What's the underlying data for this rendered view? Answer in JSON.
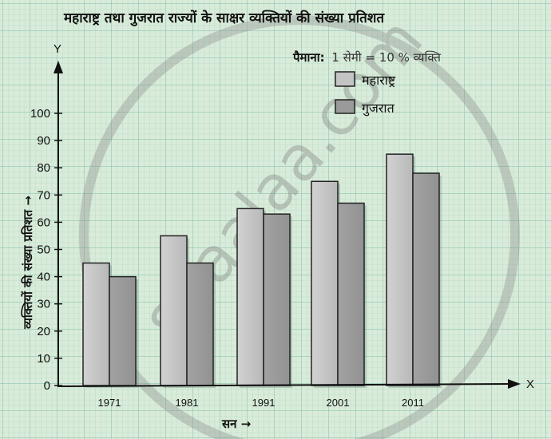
{
  "chart_data": {
    "type": "bar",
    "title": "महाराष्ट्र तथा गुजरात राज्यों के साक्षर व्यक्तियों की संख्या प्रतिशत",
    "scale_label": "पैमाना:",
    "scale_text": "1 सेमी = 10 % व्यक्ति",
    "xlabel": "सन →",
    "ylabel": "व्यक्तियों की संख्या प्रतिशत →",
    "x_axis_letter": "X",
    "y_axis_letter": "Y",
    "categories": [
      "1971",
      "1981",
      "1991",
      "2001",
      "2011"
    ],
    "series": [
      {
        "name": "महाराष्ट्र",
        "values": [
          45,
          55,
          65,
          75,
          85
        ],
        "color": "#c4c4c4"
      },
      {
        "name": "गुजरात",
        "values": [
          40,
          45,
          63,
          67,
          78
        ],
        "color": "#9a9a9a"
      }
    ],
    "ylim": [
      0,
      100
    ],
    "yticks": [
      "0",
      "10",
      "20",
      "30",
      "40",
      "50",
      "60",
      "70",
      "80",
      "90",
      "100"
    ],
    "grid": true,
    "legend_position": "top-right",
    "watermark": "shaalaa.com",
    "background_color": "#d9ebd9",
    "grid_color": "#8fc4b4"
  }
}
